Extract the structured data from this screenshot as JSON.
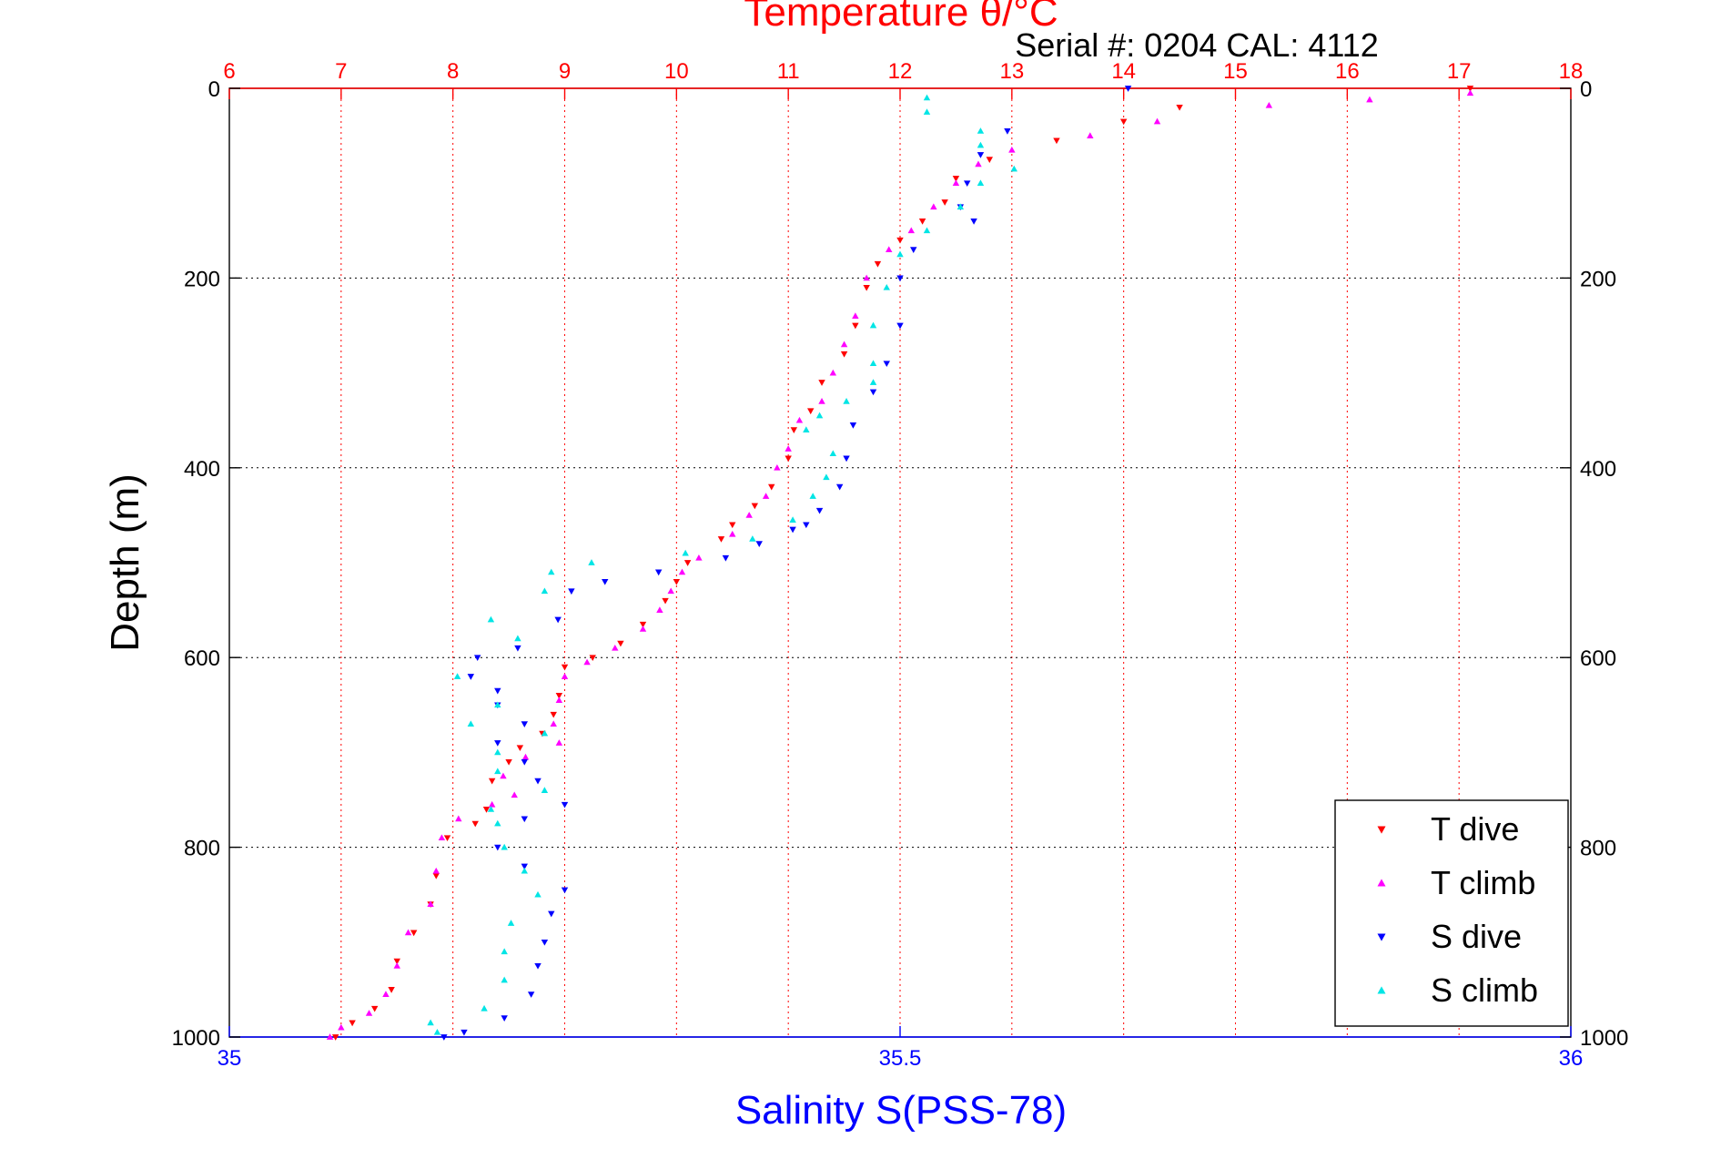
{
  "chart_data": {
    "type": "scatter",
    "title": "Temperature θ/°C",
    "subtitle": "Serial #: 0204  CAL: 4112",
    "ylabel": "Depth (m)",
    "xlabel_bottom": "Salinity S(PSS-78)",
    "y_axis": {
      "range": [
        0,
        1000
      ],
      "reversed": true,
      "ticks": [
        "0",
        "200",
        "400",
        "600",
        "800",
        "1000"
      ]
    },
    "x_axis_top": {
      "quantity": "temperature",
      "range": [
        6,
        18
      ],
      "ticks": [
        "6",
        "7",
        "8",
        "9",
        "10",
        "11",
        "12",
        "13",
        "14",
        "15",
        "16",
        "17",
        "18"
      ],
      "color": "#ff0000"
    },
    "x_axis_bottom": {
      "quantity": "salinity",
      "range": [
        35,
        36
      ],
      "ticks": [
        "35",
        "35.5",
        "36"
      ],
      "color": "#0000ff"
    },
    "grid": true,
    "legend_position": "bottom-right",
    "series": [
      {
        "name": "T dive",
        "axis": "top",
        "marker": "triangle-down",
        "color": "#ff0000",
        "points": [
          [
            17.1,
            0
          ],
          [
            14.5,
            20
          ],
          [
            14.0,
            35
          ],
          [
            13.4,
            55
          ],
          [
            12.8,
            75
          ],
          [
            12.5,
            95
          ],
          [
            12.4,
            120
          ],
          [
            12.2,
            140
          ],
          [
            12.0,
            160
          ],
          [
            11.8,
            185
          ],
          [
            11.7,
            210
          ],
          [
            11.6,
            250
          ],
          [
            11.5,
            280
          ],
          [
            11.3,
            310
          ],
          [
            11.2,
            340
          ],
          [
            11.05,
            360
          ],
          [
            11.0,
            390
          ],
          [
            10.85,
            420
          ],
          [
            10.7,
            440
          ],
          [
            10.5,
            460
          ],
          [
            10.4,
            475
          ],
          [
            10.1,
            500
          ],
          [
            10.0,
            520
          ],
          [
            9.9,
            540
          ],
          [
            9.7,
            565
          ],
          [
            9.5,
            585
          ],
          [
            9.25,
            600
          ],
          [
            9.0,
            610
          ],
          [
            8.95,
            640
          ],
          [
            8.9,
            660
          ],
          [
            8.8,
            680
          ],
          [
            8.6,
            695
          ],
          [
            8.5,
            710
          ],
          [
            8.35,
            730
          ],
          [
            8.3,
            760
          ],
          [
            8.2,
            775
          ],
          [
            7.95,
            790
          ],
          [
            7.85,
            830
          ],
          [
            7.8,
            860
          ],
          [
            7.65,
            890
          ],
          [
            7.5,
            920
          ],
          [
            7.45,
            950
          ],
          [
            7.3,
            970
          ],
          [
            7.1,
            985
          ],
          [
            6.95,
            1000
          ]
        ]
      },
      {
        "name": "T climb",
        "axis": "top",
        "marker": "triangle-up",
        "color": "#ff00ff",
        "points": [
          [
            17.1,
            5
          ],
          [
            16.2,
            12
          ],
          [
            15.3,
            18
          ],
          [
            14.3,
            35
          ],
          [
            13.7,
            50
          ],
          [
            13.0,
            65
          ],
          [
            12.7,
            80
          ],
          [
            12.5,
            100
          ],
          [
            12.3,
            125
          ],
          [
            12.1,
            150
          ],
          [
            11.9,
            170
          ],
          [
            11.7,
            200
          ],
          [
            11.6,
            240
          ],
          [
            11.5,
            270
          ],
          [
            11.4,
            300
          ],
          [
            11.3,
            330
          ],
          [
            11.1,
            350
          ],
          [
            11.0,
            380
          ],
          [
            10.9,
            400
          ],
          [
            10.8,
            430
          ],
          [
            10.65,
            450
          ],
          [
            10.5,
            470
          ],
          [
            10.2,
            495
          ],
          [
            10.05,
            510
          ],
          [
            9.95,
            530
          ],
          [
            9.85,
            550
          ],
          [
            9.7,
            570
          ],
          [
            9.45,
            590
          ],
          [
            9.2,
            605
          ],
          [
            9.0,
            620
          ],
          [
            8.95,
            645
          ],
          [
            8.9,
            670
          ],
          [
            8.95,
            690
          ],
          [
            8.65,
            705
          ],
          [
            8.45,
            725
          ],
          [
            8.55,
            745
          ],
          [
            8.35,
            755
          ],
          [
            8.05,
            770
          ],
          [
            7.9,
            790
          ],
          [
            7.85,
            825
          ],
          [
            7.8,
            860
          ],
          [
            7.6,
            890
          ],
          [
            7.5,
            925
          ],
          [
            7.4,
            955
          ],
          [
            7.25,
            975
          ],
          [
            7.0,
            990
          ],
          [
            6.9,
            1000
          ]
        ]
      },
      {
        "name": "S dive",
        "axis": "bottom",
        "marker": "triangle-down",
        "color": "#0000ff",
        "points": [
          [
            35.67,
            0
          ],
          [
            35.58,
            45
          ],
          [
            35.56,
            70
          ],
          [
            35.55,
            100
          ],
          [
            35.545,
            125
          ],
          [
            35.555,
            140
          ],
          [
            35.51,
            170
          ],
          [
            35.5,
            200
          ],
          [
            35.5,
            250
          ],
          [
            35.49,
            290
          ],
          [
            35.48,
            320
          ],
          [
            35.465,
            355
          ],
          [
            35.46,
            390
          ],
          [
            35.455,
            420
          ],
          [
            35.44,
            445
          ],
          [
            35.43,
            460
          ],
          [
            35.42,
            465
          ],
          [
            35.395,
            480
          ],
          [
            35.37,
            495
          ],
          [
            35.32,
            510
          ],
          [
            35.28,
            520
          ],
          [
            35.255,
            530
          ],
          [
            35.245,
            560
          ],
          [
            35.215,
            590
          ],
          [
            35.185,
            600
          ],
          [
            35.18,
            620
          ],
          [
            35.2,
            635
          ],
          [
            35.2,
            650
          ],
          [
            35.22,
            670
          ],
          [
            35.2,
            690
          ],
          [
            35.22,
            710
          ],
          [
            35.23,
            730
          ],
          [
            35.25,
            755
          ],
          [
            35.22,
            770
          ],
          [
            35.2,
            800
          ],
          [
            35.22,
            820
          ],
          [
            35.25,
            845
          ],
          [
            35.24,
            870
          ],
          [
            35.235,
            900
          ],
          [
            35.23,
            925
          ],
          [
            35.225,
            955
          ],
          [
            35.205,
            980
          ],
          [
            35.175,
            995
          ],
          [
            35.16,
            1000
          ]
        ]
      },
      {
        "name": "S climb",
        "axis": "bottom",
        "marker": "triangle-up",
        "color": "#00e5e5",
        "points": [
          [
            35.52,
            10
          ],
          [
            35.52,
            25
          ],
          [
            35.56,
            45
          ],
          [
            35.56,
            60
          ],
          [
            35.585,
            85
          ],
          [
            35.56,
            100
          ],
          [
            35.545,
            125
          ],
          [
            35.52,
            150
          ],
          [
            35.5,
            175
          ],
          [
            35.49,
            210
          ],
          [
            35.48,
            250
          ],
          [
            35.48,
            290
          ],
          [
            35.48,
            310
          ],
          [
            35.46,
            330
          ],
          [
            35.44,
            345
          ],
          [
            35.43,
            360
          ],
          [
            35.45,
            385
          ],
          [
            35.445,
            410
          ],
          [
            35.435,
            430
          ],
          [
            35.42,
            455
          ],
          [
            35.39,
            475
          ],
          [
            35.34,
            490
          ],
          [
            35.27,
            500
          ],
          [
            35.24,
            510
          ],
          [
            35.235,
            530
          ],
          [
            35.195,
            560
          ],
          [
            35.215,
            580
          ],
          [
            35.17,
            620
          ],
          [
            35.2,
            650
          ],
          [
            35.18,
            670
          ],
          [
            35.235,
            680
          ],
          [
            35.2,
            700
          ],
          [
            35.2,
            720
          ],
          [
            35.235,
            740
          ],
          [
            35.195,
            760
          ],
          [
            35.2,
            775
          ],
          [
            35.205,
            800
          ],
          [
            35.22,
            825
          ],
          [
            35.23,
            850
          ],
          [
            35.21,
            880
          ],
          [
            35.205,
            910
          ],
          [
            35.205,
            940
          ],
          [
            35.19,
            970
          ],
          [
            35.15,
            985
          ],
          [
            35.155,
            995
          ]
        ]
      }
    ]
  }
}
